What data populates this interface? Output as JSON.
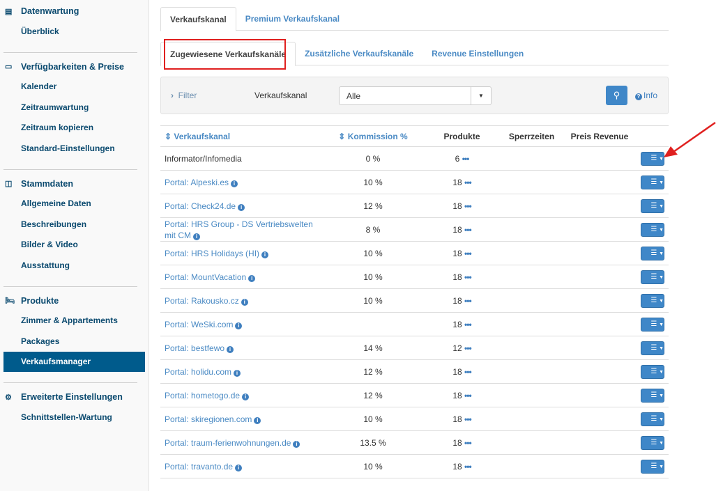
{
  "sidebar": {
    "groups": [
      {
        "title": "Datenwartung",
        "icon": "document-icon",
        "items": [
          "Überblick"
        ]
      },
      {
        "title": "Verfügbarkeiten & Preise",
        "icon": "money-icon",
        "items": [
          "Kalender",
          "Zeitraumwartung",
          "Zeitraum kopieren",
          "Standard-Einstellungen"
        ]
      },
      {
        "title": "Stammdaten",
        "icon": "columns-icon",
        "items": [
          "Allgemeine Daten",
          "Beschreibungen",
          "Bilder & Video",
          "Ausstattung"
        ]
      },
      {
        "title": "Produkte",
        "icon": "bed-icon",
        "items": [
          "Zimmer & Appartements",
          "Packages",
          "Verkaufsmanager"
        ]
      },
      {
        "title": "Erweiterte Einstellungen",
        "icon": "gears-icon",
        "items": [
          "Schnittstellen-Wartung"
        ]
      }
    ],
    "active": "Verkaufsmanager"
  },
  "tabs": [
    "Verkaufskanal",
    "Premium Verkaufskanal"
  ],
  "subtabs": [
    "Zugewiesene Verkaufskanäle",
    "Zusätzliche Verkaufskanäle",
    "Revenue Einstellungen"
  ],
  "filter": {
    "toggle": "Filter",
    "label": "Verkaufskanal",
    "value": "Alle",
    "info": "Info"
  },
  "table": {
    "headers": [
      "Verkaufskanal",
      "Kommission %",
      "Produkte",
      "Sperrzeiten",
      "Preis Revenue"
    ],
    "rows": [
      {
        "name": "Informator/Infomedia",
        "link": false,
        "info": false,
        "kommission": "0 %",
        "produkte": "6"
      },
      {
        "name": "Portal: Alpeski.es",
        "link": true,
        "info": true,
        "kommission": "10 %",
        "produkte": "18"
      },
      {
        "name": "Portal: Check24.de",
        "link": true,
        "info": true,
        "kommission": "12 %",
        "produkte": "18"
      },
      {
        "name": "Portal: HRS Group - DS Vertriebswelten mit CM",
        "link": true,
        "info": true,
        "kommission": "8 %",
        "produkte": "18"
      },
      {
        "name": "Portal: HRS Holidays (HI)",
        "link": true,
        "info": true,
        "kommission": "10 %",
        "produkte": "18"
      },
      {
        "name": "Portal: MountVacation",
        "link": true,
        "info": true,
        "kommission": "10 %",
        "produkte": "18"
      },
      {
        "name": "Portal: Rakousko.cz",
        "link": true,
        "info": true,
        "kommission": "10 %",
        "produkte": "18"
      },
      {
        "name": "Portal: WeSki.com",
        "link": true,
        "info": true,
        "kommission": "",
        "produkte": "18"
      },
      {
        "name": "Portal: bestfewo",
        "link": true,
        "info": true,
        "kommission": "14 %",
        "produkte": "12"
      },
      {
        "name": "Portal: holidu.com",
        "link": true,
        "info": true,
        "kommission": "12 %",
        "produkte": "18"
      },
      {
        "name": "Portal: hometogo.de",
        "link": true,
        "info": true,
        "kommission": "12 %",
        "produkte": "18"
      },
      {
        "name": "Portal: skiregionen.com",
        "link": true,
        "info": true,
        "kommission": "10 %",
        "produkte": "18"
      },
      {
        "name": "Portal: traum-ferienwohnungen.de",
        "link": true,
        "info": true,
        "kommission": "13.5 %",
        "produkte": "18"
      },
      {
        "name": "Portal: travanto.de",
        "link": true,
        "info": true,
        "kommission": "10 %",
        "produkte": "18"
      }
    ]
  },
  "colors": {
    "accent": "#3f87c8",
    "sidebar_active": "#005b8c",
    "highlight_box": "#e0201f",
    "annotation_arrow": "#e0201f"
  }
}
